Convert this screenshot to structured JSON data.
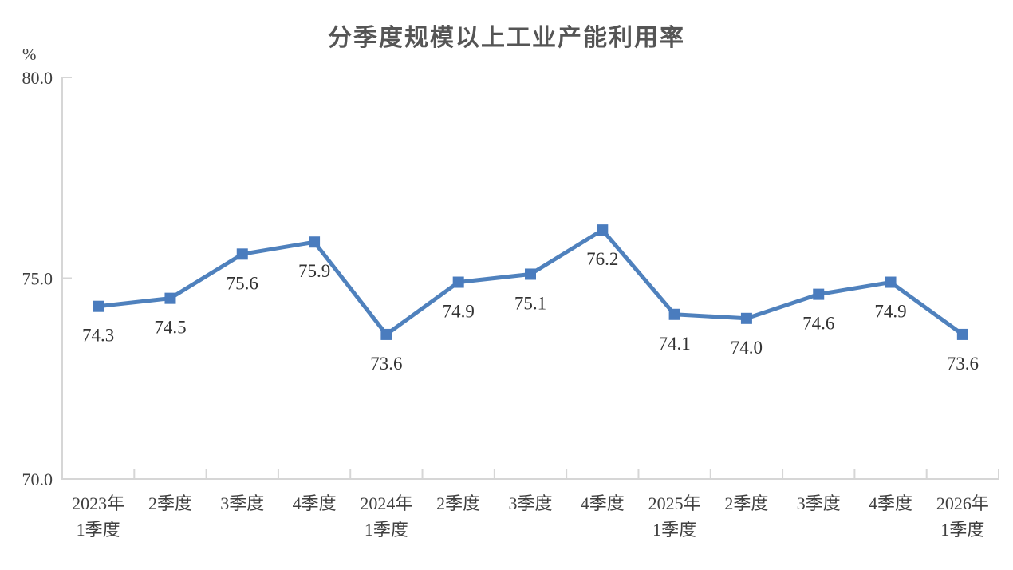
{
  "chart_data": {
    "type": "line",
    "title": "分季度规模以上工业产能利用率",
    "unit_label": "%",
    "categories": [
      "2023年\n1季度",
      "2季度",
      "3季度",
      "4季度",
      "2024年\n1季度",
      "2季度",
      "3季度",
      "4季度",
      "2025年\n1季度",
      "2季度",
      "3季度",
      "4季度",
      "2026年\n1季度"
    ],
    "values": [
      74.3,
      74.5,
      75.6,
      75.9,
      73.6,
      74.9,
      75.1,
      76.2,
      74.1,
      74.0,
      74.6,
      74.9,
      73.6
    ],
    "value_labels": [
      "74.3",
      "74.5",
      "75.6",
      "75.9",
      "73.6",
      "74.9",
      "75.1",
      "76.2",
      "74.1",
      "74.0",
      "74.6",
      "74.9",
      "73.6"
    ],
    "ylim": [
      70.0,
      80.0
    ],
    "yticks": [
      80.0,
      75.0,
      70.0
    ],
    "ytick_labels": [
      "80.0",
      "75.0",
      "70.0"
    ],
    "grid": false,
    "legend": "none",
    "marker": "square",
    "colors": {
      "line": "#4F81BD",
      "marker": "#4A7CBE",
      "axis": "#D6D6D6",
      "tick_text": "#3F3F3F",
      "data_label": "#333333"
    }
  }
}
